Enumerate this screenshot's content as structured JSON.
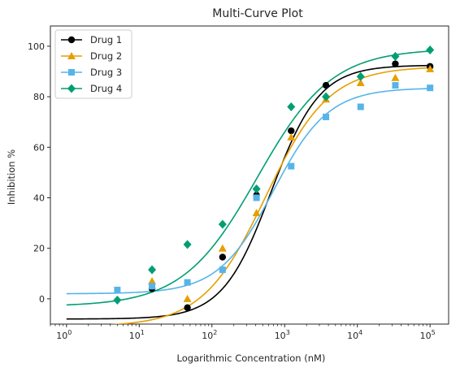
{
  "chart_data": {
    "type": "scatter",
    "title": "Multi-Curve Plot",
    "xlabel": "Logarithmic Concentration (nM)",
    "ylabel": "Inhibition %",
    "xscale": "log",
    "xlim": [
      0.6,
      180000
    ],
    "ylim": [
      -10,
      108
    ],
    "xticks": [
      {
        "value": 1,
        "base": "10",
        "exp": "0"
      },
      {
        "value": 10,
        "base": "10",
        "exp": "1"
      },
      {
        "value": 100,
        "base": "10",
        "exp": "2"
      },
      {
        "value": 1000,
        "base": "10",
        "exp": "3"
      },
      {
        "value": 10000,
        "base": "10",
        "exp": "4"
      },
      {
        "value": 100000,
        "base": "10",
        "exp": "5"
      }
    ],
    "yticks": [
      0,
      20,
      40,
      60,
      80,
      100
    ],
    "grid": false,
    "legend": "top-left",
    "x": [
      5,
      15,
      46,
      140,
      410,
      1230,
      3700,
      11100,
      33300,
      100000
    ],
    "series": [
      {
        "name": "Drug 1",
        "color": "#000000",
        "marker": "circle",
        "x": [
          15,
          46,
          140,
          410,
          1230,
          3700,
          33300,
          100000
        ],
        "values": [
          4,
          -3.5,
          16.5,
          41,
          66.5,
          84.5,
          93,
          92
        ],
        "fit": {
          "bottom": -8,
          "top": 92.5,
          "ec50": 650,
          "hill": 1.3
        }
      },
      {
        "name": "Drug 2",
        "color": "#E69F00",
        "marker": "triangle",
        "x": [
          15,
          46,
          140,
          410,
          1230,
          3700,
          11100,
          33300,
          100000
        ],
        "values": [
          7,
          0,
          20,
          34,
          64,
          79,
          85.5,
          87.5,
          91
        ],
        "fit": {
          "bottom": -11,
          "top": 92,
          "ec50": 550,
          "hill": 1.0
        }
      },
      {
        "name": "Drug 3",
        "color": "#56B4E9",
        "marker": "square",
        "x": [
          5,
          15,
          46,
          140,
          410,
          1230,
          3700,
          11100,
          33300,
          100000
        ],
        "values": [
          3.5,
          5,
          6.5,
          11.5,
          40,
          52.5,
          72,
          76,
          84.5,
          83.5
        ],
        "fit": {
          "bottom": 2,
          "top": 83.5,
          "ec50": 700,
          "hill": 1.15
        }
      },
      {
        "name": "Drug 4",
        "color": "#009E73",
        "marker": "diamond",
        "x": [
          5,
          15,
          46,
          140,
          410,
          1230,
          3700,
          11100,
          33300,
          100000
        ],
        "values": [
          -0.5,
          11.5,
          21.5,
          29.5,
          43.5,
          76,
          80,
          88,
          96,
          98.5
        ],
        "fit": {
          "bottom": -3,
          "top": 99,
          "ec50": 420,
          "hill": 0.85
        }
      }
    ]
  }
}
